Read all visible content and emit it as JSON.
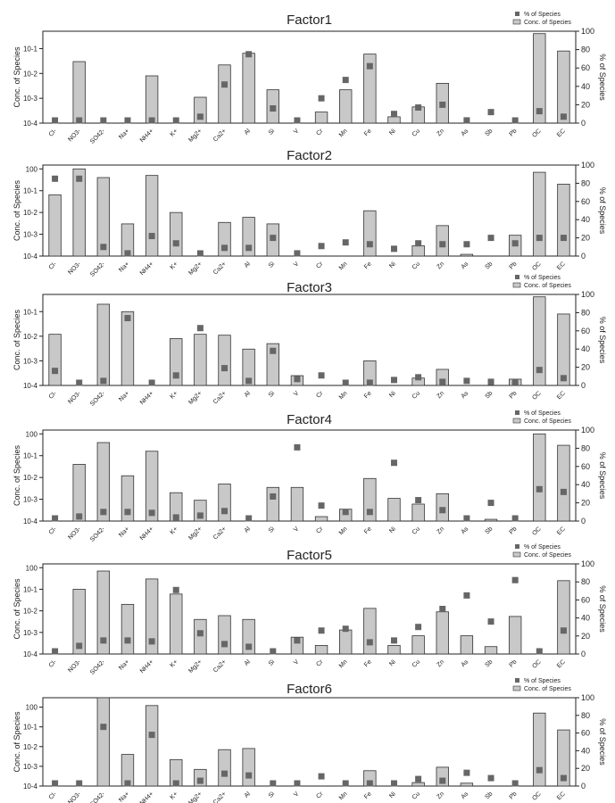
{
  "categories": [
    "Cl-",
    "NO3-",
    "SO42-",
    "Na+",
    "NH4+",
    "K+",
    "Mg2+",
    "Ca2+",
    "Al",
    "Si",
    "V",
    "Cr",
    "Mn",
    "Fe",
    "Ni",
    "Cu",
    "Zn",
    "As",
    "Sb",
    "Pb",
    "OC",
    "EC"
  ],
  "legend": {
    "pct_label": "% of Species",
    "conc_label": "Conc. of Species"
  },
  "colors": {
    "bar_fill": "#c8c8c8",
    "bar_stroke": "#333333",
    "marker": "#666666",
    "axis": "#222222"
  },
  "chart_data": [
    {
      "type": "bar",
      "title": "Factor1",
      "ylabel": "Conc. of Species",
      "y2label": "% of Species",
      "yscale": "log",
      "ylim": [
        0.0001,
        0.5
      ],
      "y2lim": [
        0,
        100
      ],
      "y_ticks": [
        "10-4",
        "10-3",
        "10-2",
        "10-1"
      ],
      "y2_ticks": [
        "0",
        "20",
        "40",
        "60",
        "80",
        "100"
      ],
      "legend_position": "top-right",
      "series": [
        {
          "name": "Conc. of Species",
          "kind": "bar",
          "values": [
            0.0001,
            0.03,
            0.0001,
            0.0001,
            0.008,
            0.0001,
            0.0011,
            0.022,
            0.065,
            0.0022,
            0.0001,
            0.00028,
            0.0022,
            0.06,
            0.00018,
            0.00045,
            0.004,
            0.0001,
            0.0001,
            0.0001,
            0.4,
            0.08
          ]
        },
        {
          "name": "% of Species",
          "kind": "scatter",
          "values": [
            0,
            2,
            0,
            0,
            1,
            1,
            7,
            42,
            75,
            16,
            1,
            27,
            47,
            62,
            10,
            17,
            20,
            3,
            12,
            1,
            13,
            7
          ]
        }
      ]
    },
    {
      "type": "bar",
      "title": "Factor2",
      "ylabel": "Conc. of Species",
      "y2label": "% of Species",
      "yscale": "log",
      "ylim": [
        0.0001,
        1.5
      ],
      "y2lim": [
        0,
        100
      ],
      "y_ticks": [
        "10-4",
        "10-3",
        "10-2",
        "10-1",
        "100"
      ],
      "y2_ticks": [
        "0",
        "20",
        "40",
        "60",
        "80",
        "100"
      ],
      "legend_position": "none",
      "series": [
        {
          "name": "Conc. of Species",
          "kind": "bar",
          "values": [
            0.065,
            1.0,
            0.4,
            0.003,
            0.5,
            0.01,
            0.0001,
            0.0035,
            0.006,
            0.003,
            0.0001,
            0.0001,
            0.0001,
            0.012,
            0.0001,
            0.0003,
            0.0025,
            0.00012,
            0.0001,
            0.0009,
            0.7,
            0.2
          ]
        },
        {
          "name": "% of Species",
          "kind": "scatter",
          "values": [
            85,
            85,
            10,
            3,
            22,
            14,
            2,
            9,
            9,
            20,
            3,
            11,
            15,
            13,
            8,
            14,
            13,
            13,
            20,
            14,
            20,
            20
          ]
        }
      ]
    },
    {
      "type": "bar",
      "title": "Factor3",
      "ylabel": "Conc. of Species",
      "y2label": "% of Species",
      "yscale": "log",
      "ylim": [
        0.0001,
        0.5
      ],
      "y2lim": [
        0,
        100
      ],
      "y_ticks": [
        "10-4",
        "10-3",
        "10-2",
        "10-1"
      ],
      "y2_ticks": [
        "0",
        "20",
        "40",
        "60",
        "80",
        "100"
      ],
      "legend_position": "top-right",
      "series": [
        {
          "name": "Conc. of Species",
          "kind": "bar",
          "values": [
            0.012,
            0.0001,
            0.2,
            0.1,
            0.0001,
            0.008,
            0.012,
            0.011,
            0.003,
            0.005,
            0.00025,
            0.0001,
            0.0001,
            0.001,
            0.0001,
            0.0002,
            0.00045,
            0.0001,
            0.0001,
            0.00018,
            0.4,
            0.08
          ]
        },
        {
          "name": "% of Species",
          "kind": "scatter",
          "values": [
            16,
            2,
            5,
            74,
            2,
            11,
            63,
            19,
            5,
            38,
            7,
            11,
            2,
            3,
            6,
            9,
            4,
            5,
            4,
            4,
            17,
            8
          ]
        }
      ]
    },
    {
      "type": "bar",
      "title": "Factor4",
      "ylabel": "Conc. of Species",
      "y2label": "% of Species",
      "yscale": "log",
      "ylim": [
        0.0001,
        1.5
      ],
      "y2lim": [
        0,
        100
      ],
      "y_ticks": [
        "10-4",
        "10-3",
        "10-2",
        "10-1",
        "100"
      ],
      "y2_ticks": [
        "0",
        "20",
        "40",
        "60",
        "80",
        "100"
      ],
      "legend_position": "top-right",
      "series": [
        {
          "name": "Conc. of Species",
          "kind": "bar",
          "values": [
            0.0001,
            0.04,
            0.4,
            0.012,
            0.16,
            0.002,
            0.0009,
            0.005,
            0.0001,
            0.0035,
            0.0035,
            0.00016,
            0.00035,
            0.009,
            0.0011,
            0.0006,
            0.0018,
            0.0001,
            0.00012,
            0.0001,
            1.0,
            0.3
          ]
        },
        {
          "name": "% of Species",
          "kind": "scatter",
          "values": [
            1,
            5,
            10,
            10,
            9,
            4,
            6,
            11,
            1,
            27,
            81,
            17,
            10,
            10,
            64,
            23,
            12,
            1,
            20,
            1,
            35,
            32
          ]
        }
      ]
    },
    {
      "type": "bar",
      "title": "Factor5",
      "ylabel": "Conc. of Species",
      "y2label": "% of Species",
      "yscale": "log",
      "ylim": [
        0.0001,
        1.5
      ],
      "y2lim": [
        0,
        100
      ],
      "y_ticks": [
        "10-4",
        "10-3",
        "10-2",
        "10-1",
        "100"
      ],
      "y2_ticks": [
        "0",
        "20",
        "40",
        "60",
        "80",
        "100"
      ],
      "legend_position": "top-right",
      "series": [
        {
          "name": "Conc. of Species",
          "kind": "bar",
          "values": [
            0.0001,
            0.1,
            0.7,
            0.02,
            0.3,
            0.06,
            0.004,
            0.006,
            0.004,
            0.0001,
            0.0006,
            0.00025,
            0.0013,
            0.013,
            0.00025,
            0.0007,
            0.009,
            0.0007,
            0.00022,
            0.0055,
            0.0001,
            0.25
          ]
        },
        {
          "name": "% of Species",
          "kind": "scatter",
          "values": [
            1,
            9,
            15,
            15,
            14,
            71,
            23,
            11,
            8,
            1,
            15,
            26,
            28,
            13,
            15,
            30,
            50,
            65,
            36,
            82,
            1,
            26
          ]
        }
      ]
    },
    {
      "type": "bar",
      "title": "Factor6",
      "ylabel": "Conc. of Species",
      "y2label": "% of Species",
      "yscale": "log",
      "ylim": [
        0.0001,
        3
      ],
      "y2lim": [
        0,
        100
      ],
      "y_ticks": [
        "10-4",
        "10-3",
        "10-2",
        "10-1",
        "100"
      ],
      "y2_ticks": [
        "0",
        "20",
        "40",
        "60",
        "80",
        "100"
      ],
      "legend_position": "top-right",
      "series": [
        {
          "name": "Conc. of Species",
          "kind": "bar",
          "values": [
            0.0001,
            0.0001,
            3.0,
            0.004,
            1.2,
            0.0022,
            0.0007,
            0.007,
            0.008,
            0.0001,
            0.0001,
            0.0001,
            0.0001,
            0.0006,
            0.0001,
            0.00015,
            0.0009,
            0.00014,
            0.0001,
            0.0001,
            0.5,
            0.07
          ]
        },
        {
          "name": "% of Species",
          "kind": "scatter",
          "values": [
            1,
            1,
            67,
            3,
            58,
            3,
            6,
            14,
            12,
            1,
            1,
            11,
            1,
            3,
            3,
            8,
            6,
            15,
            9,
            3,
            18,
            9
          ]
        }
      ]
    }
  ]
}
